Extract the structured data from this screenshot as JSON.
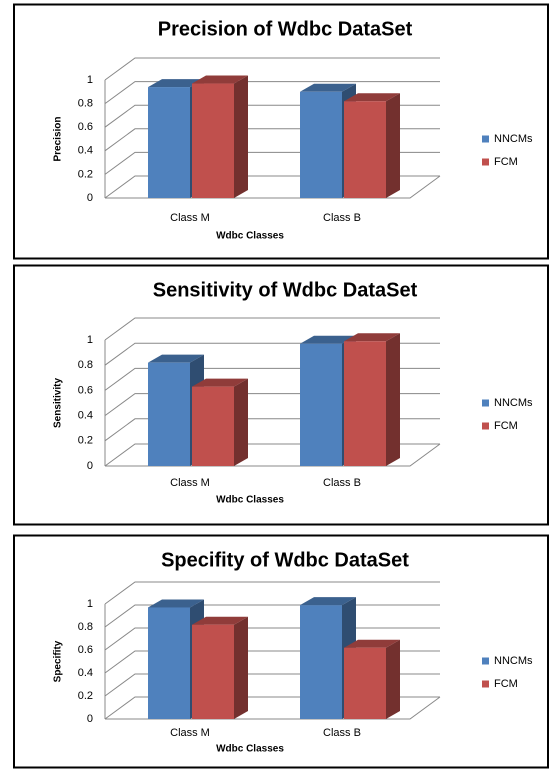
{
  "chart_data": [
    {
      "type": "bar3d",
      "title": "Precision of Wdbc DataSet",
      "x_label": "Wdbc Classes",
      "y_label": "Precision",
      "categories": [
        "Class M",
        "Class B"
      ],
      "series": [
        {
          "name": "NNCMs",
          "color": "#4f81bd",
          "values": [
            0.94,
            0.9
          ]
        },
        {
          "name": "FCM",
          "color": "#c0504d",
          "values": [
            0.97,
            0.82
          ]
        }
      ],
      "ylim": [
        0,
        1
      ],
      "yticks": [
        0,
        0.2,
        0.4,
        0.6,
        0.8,
        1
      ],
      "grid": true,
      "legend": "right"
    },
    {
      "type": "bar3d",
      "title": "Sensitivity of Wdbc DataSet",
      "x_label": "Wdbc Classes",
      "y_label": "Sensitivity",
      "categories": [
        "Class M",
        "Class B"
      ],
      "series": [
        {
          "name": "NNCMs",
          "color": "#4f81bd",
          "values": [
            0.82,
            0.97
          ]
        },
        {
          "name": "FCM",
          "color": "#c0504d",
          "values": [
            0.63,
            0.99
          ]
        }
      ],
      "ylim": [
        0,
        1
      ],
      "yticks": [
        0,
        0.2,
        0.4,
        0.6,
        0.8,
        1
      ],
      "grid": true,
      "legend": "right"
    },
    {
      "type": "bar3d",
      "title": "Specifity of Wdbc DataSet",
      "x_label": "Wdbc Classes",
      "y_label": "Specifity",
      "categories": [
        "Class M",
        "Class B"
      ],
      "series": [
        {
          "name": "NNCMs",
          "color": "#4f81bd",
          "values": [
            0.97,
            0.99
          ]
        },
        {
          "name": "FCM",
          "color": "#c0504d",
          "values": [
            0.82,
            0.62
          ]
        }
      ],
      "ylim": [
        0,
        1
      ],
      "yticks": [
        0,
        0.2,
        0.4,
        0.6,
        0.8,
        1
      ],
      "grid": true,
      "legend": "right"
    }
  ]
}
